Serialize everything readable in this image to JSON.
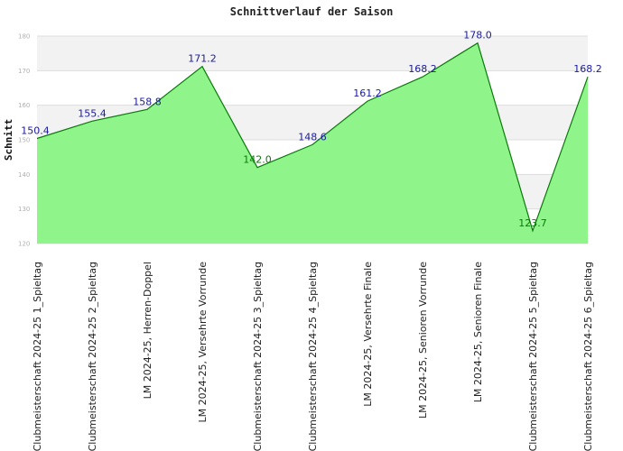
{
  "chart_data": {
    "type": "area",
    "title": "Schnittverlauf der Saison",
    "xlabel": "",
    "ylabel": "Schnitt",
    "ylim": [
      120,
      180
    ],
    "yticks": [
      120,
      130,
      140,
      150,
      160,
      170,
      180
    ],
    "grid": "horizontal alternating bands",
    "categories": [
      "Clubmeisterschaft 2024-25   1_Spieltag",
      "Clubmeisterschaft 2024-25   2_Spieltag",
      "LM 2024-25, Herren-Doppel",
      "LM 2024-25, Versehrte Vorrunde",
      "Clubmeisterschaft 2024-25   3_Spieltag",
      "Clubmeisterschaft 2024-25   4_Spieltag",
      "LM 2024-25, Versehrte Finale",
      "LM 2024-25, Senioren Vorrunde",
      "LM 2024-25, Senioren Finale",
      "Clubmeisterschaft 2024-25   5_Spieltag",
      "Clubmeisterschaft 2024-25   6_Spieltag"
    ],
    "values": [
      150.4,
      155.4,
      158.8,
      171.2,
      142.0,
      148.6,
      161.2,
      168.2,
      178.0,
      123.7,
      168.2
    ],
    "value_labels": [
      "150.4",
      "155.4",
      "158.8",
      "171.2",
      "142.0",
      "148.6",
      "161.2",
      "168.2",
      "178.0",
      "123.7",
      "168.2"
    ],
    "colors": {
      "fill": "#8ff58a",
      "line": "#0a7a0a",
      "band": "#f2f2f2",
      "gridline": "#dddddd",
      "label_above": "#1a1aa0",
      "label_below": "#0a7a0a"
    }
  }
}
